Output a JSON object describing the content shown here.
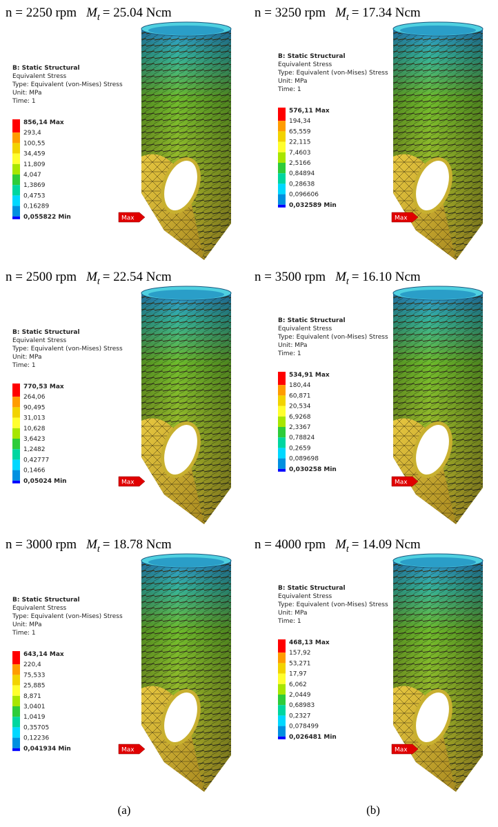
{
  "legend_colors": [
    "#ff0000",
    "#ff9c00",
    "#f2d300",
    "#ffff2e",
    "#a8e600",
    "#2ecc3a",
    "#00d6a0",
    "#00d8ff",
    "#0090e0",
    "#0000ff"
  ],
  "captions": [
    "(a)",
    "(b)"
  ],
  "panels": [
    {
      "speed": "n = 2250 rpm",
      "torque_symbol": "M",
      "torque_subscript": "t",
      "torque": "= 25.04 Ncm",
      "legend": {
        "title": "B: Static Structural",
        "lines": [
          "Equivalent Stress",
          "Type: Equivalent (von-Mises) Stress",
          "Unit: MPa",
          "Time: 1"
        ],
        "labels": [
          "856,14 Max",
          "293,4",
          "100,55",
          "34,459",
          "11,809",
          "4,047",
          "1,3869",
          "0,4753",
          "0,16289",
          "0,055822 Min"
        ]
      },
      "max_tag": "Max"
    },
    {
      "speed": "n = 2500 rpm",
      "torque_symbol": "M",
      "torque_subscript": "t",
      "torque": "= 22.54 Ncm",
      "legend": {
        "title": "B: Static Structural",
        "lines": [
          "Equivalent Stress",
          "Type: Equivalent (von-Mises) Stress",
          "Unit: MPa",
          "Time: 1"
        ],
        "labels": [
          "770,53 Max",
          "264,06",
          "90,495",
          "31,013",
          "10,628",
          "3,6423",
          "1,2482",
          "0,42777",
          "0,1466",
          "0,05024 Min"
        ]
      },
      "max_tag": "Max"
    },
    {
      "speed": "n = 3000 rpm",
      "torque_symbol": "M",
      "torque_subscript": "t",
      "torque": "= 18.78 Ncm",
      "legend": {
        "title": "B: Static Structural",
        "lines": [
          "Equivalent Stress",
          "Type: Equivalent (von-Mises) Stress",
          "Unit: MPa",
          "Time: 1"
        ],
        "labels": [
          "643,14 Max",
          "220,4",
          "75,533",
          "25,885",
          "8,871",
          "3,0401",
          "1,0419",
          "0,35705",
          "0,12236",
          "0,041934 Min"
        ]
      },
      "max_tag": "Max"
    },
    {
      "speed": "n = 3250 rpm",
      "torque_symbol": "M",
      "torque_subscript": "t",
      "torque": "= 17.34 Ncm",
      "legend": {
        "title": "B: Static Structural",
        "lines": [
          "Equivalent Stress",
          "Type: Equivalent (von-Mises) Stress",
          "Unit: MPa",
          "Time: 1"
        ],
        "labels": [
          "576,11 Max",
          "194,34",
          "65,559",
          "22,115",
          "7,4603",
          "2,5166",
          "0,84894",
          "0,28638",
          "0,096606",
          "0,032589 Min"
        ]
      },
      "max_tag": "Max"
    },
    {
      "speed": "n = 3500 rpm",
      "torque_symbol": "M",
      "torque_subscript": "t",
      "torque": "= 16.10 Ncm",
      "legend": {
        "title": "B: Static Structural",
        "lines": [
          "Equivalent Stress",
          "Type: Equivalent (von-Mises) Stress",
          "Unit: MPa",
          "Time: 1"
        ],
        "labels": [
          "534,91 Max",
          "180,44",
          "60,871",
          "20,534",
          "6,9268",
          "2,3367",
          "0,78824",
          "0,2659",
          "0,089698",
          "0,030258 Min"
        ]
      },
      "max_tag": "Max"
    },
    {
      "speed": "n = 4000 rpm",
      "torque_symbol": "M",
      "torque_subscript": "t",
      "torque": "= 14.09 Ncm",
      "legend": {
        "title": "B: Static Structural",
        "lines": [
          "Equivalent Stress",
          "Type: Equivalent (von-Mises) Stress",
          "Unit: MPa",
          "Time: 1"
        ],
        "labels": [
          "468,13 Max",
          "157,92",
          "53,271",
          "17,97",
          "6,062",
          "2,0449",
          "0,68983",
          "0,2327",
          "0,078499",
          "0,026481 Min"
        ]
      },
      "max_tag": "Max"
    }
  ]
}
